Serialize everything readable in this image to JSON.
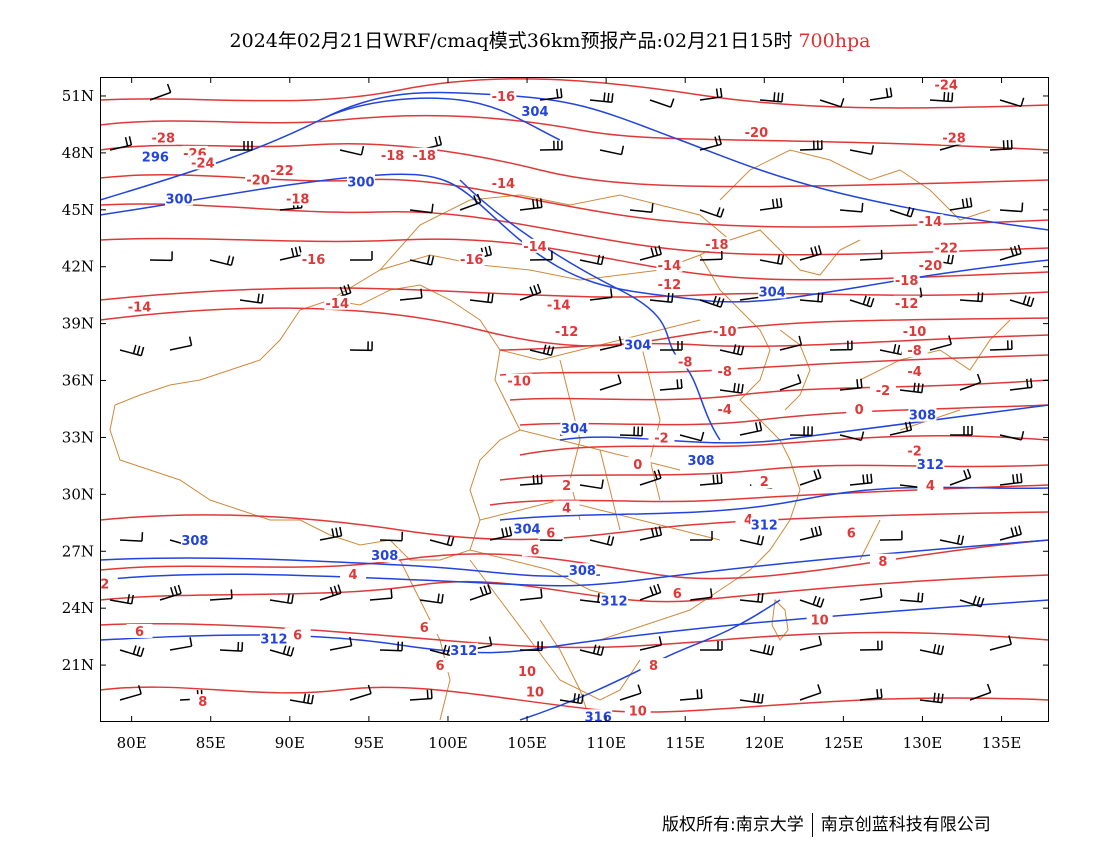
{
  "title": {
    "main": "2024年02月21日WRF/cmaq模式36km预报产品:02月21日15时",
    "level": "700hpa",
    "level_color": "#e03030"
  },
  "axes": {
    "lon_labels": [
      "80E",
      "85E",
      "90E",
      "95E",
      "100E",
      "105E",
      "110E",
      "115E",
      "120E",
      "125E",
      "130E",
      "135E"
    ],
    "lon_values": [
      80,
      85,
      90,
      95,
      100,
      105,
      110,
      115,
      120,
      125,
      130,
      135
    ],
    "lat_labels": [
      "51N",
      "48N",
      "45N",
      "42N",
      "39N",
      "36N",
      "33N",
      "30N",
      "27N",
      "24N",
      "21N"
    ],
    "lat_values": [
      51,
      48,
      45,
      42,
      39,
      36,
      33,
      30,
      27,
      24,
      21
    ],
    "lon_range": [
      78,
      138
    ],
    "lat_range": [
      18,
      52
    ]
  },
  "colors": {
    "temperature_contour": "#e03838",
    "height_contour": "#2244dd",
    "wind_barb": "#000000",
    "boundary": "#d08a3c"
  },
  "temperature_labels": [
    {
      "text": "-16",
      "lon": 103.5,
      "lat": 51.0
    },
    {
      "text": "-20",
      "lon": 119.5,
      "lat": 49.1
    },
    {
      "text": "-24",
      "lon": 131.5,
      "lat": 51.6
    },
    {
      "text": "-28",
      "lon": 132.0,
      "lat": 48.8
    },
    {
      "text": "-28",
      "lon": 82.0,
      "lat": 48.8
    },
    {
      "text": "-26",
      "lon": 84.0,
      "lat": 48.0
    },
    {
      "text": "-24",
      "lon": 84.5,
      "lat": 47.5
    },
    {
      "text": "-22",
      "lon": 89.5,
      "lat": 47.1
    },
    {
      "text": "-20",
      "lon": 88.0,
      "lat": 46.6
    },
    {
      "text": "-18",
      "lon": 90.5,
      "lat": 45.6
    },
    {
      "text": "-18",
      "lon": 96.5,
      "lat": 47.9
    },
    {
      "text": "-18",
      "lon": 98.5,
      "lat": 47.9
    },
    {
      "text": "-14",
      "lon": 103.5,
      "lat": 46.4
    },
    {
      "text": "-18",
      "lon": 117.0,
      "lat": 43.2
    },
    {
      "text": "-14",
      "lon": 130.5,
      "lat": 44.4
    },
    {
      "text": "-22",
      "lon": 131.5,
      "lat": 43.0
    },
    {
      "text": "-20",
      "lon": 130.5,
      "lat": 42.1
    },
    {
      "text": "-18",
      "lon": 129.0,
      "lat": 41.3
    },
    {
      "text": "-12",
      "lon": 129.0,
      "lat": 40.1
    },
    {
      "text": "-10",
      "lon": 129.5,
      "lat": 38.6
    },
    {
      "text": "-8",
      "lon": 129.5,
      "lat": 37.6
    },
    {
      "text": "-14",
      "lon": 105.5,
      "lat": 43.1
    },
    {
      "text": "-16",
      "lon": 91.5,
      "lat": 42.4
    },
    {
      "text": "-16",
      "lon": 101.5,
      "lat": 42.4
    },
    {
      "text": "-14",
      "lon": 93.0,
      "lat": 40.1
    },
    {
      "text": "-14",
      "lon": 107.0,
      "lat": 40.0
    },
    {
      "text": "-12",
      "lon": 107.5,
      "lat": 38.6
    },
    {
      "text": "-14",
      "lon": 80.5,
      "lat": 39.9
    },
    {
      "text": "-14",
      "lon": 114.0,
      "lat": 42.1
    },
    {
      "text": "-12",
      "lon": 114.0,
      "lat": 41.1
    },
    {
      "text": "-10",
      "lon": 117.5,
      "lat": 38.6
    },
    {
      "text": "-8",
      "lon": 115.0,
      "lat": 37.0
    },
    {
      "text": "-8",
      "lon": 117.5,
      "lat": 36.5
    },
    {
      "text": "-10",
      "lon": 104.5,
      "lat": 36.0
    },
    {
      "text": "-4",
      "lon": 129.5,
      "lat": 36.5
    },
    {
      "text": "-4",
      "lon": 117.5,
      "lat": 34.5
    },
    {
      "text": "-2",
      "lon": 127.5,
      "lat": 35.5
    },
    {
      "text": "0",
      "lon": 126.0,
      "lat": 34.5
    },
    {
      "text": "-2",
      "lon": 113.5,
      "lat": 33.0
    },
    {
      "text": "-2",
      "lon": 129.5,
      "lat": 32.3
    },
    {
      "text": "0",
      "lon": 112.0,
      "lat": 31.6
    },
    {
      "text": "2",
      "lon": 120.0,
      "lat": 30.7
    },
    {
      "text": "4",
      "lon": 130.5,
      "lat": 30.5
    },
    {
      "text": "2",
      "lon": 107.5,
      "lat": 30.5
    },
    {
      "text": "4",
      "lon": 107.5,
      "lat": 29.3
    },
    {
      "text": "4",
      "lon": 119.0,
      "lat": 28.7
    },
    {
      "text": "6",
      "lon": 125.5,
      "lat": 28.0
    },
    {
      "text": "6",
      "lon": 106.5,
      "lat": 28.0
    },
    {
      "text": "6",
      "lon": 105.5,
      "lat": 27.1
    },
    {
      "text": "8",
      "lon": 127.5,
      "lat": 26.5
    },
    {
      "text": "4",
      "lon": 94.0,
      "lat": 25.8
    },
    {
      "text": "6",
      "lon": 114.5,
      "lat": 24.8
    },
    {
      "text": "10",
      "lon": 123.5,
      "lat": 23.4
    },
    {
      "text": "6",
      "lon": 98.5,
      "lat": 23.0
    },
    {
      "text": "6",
      "lon": 80.5,
      "lat": 22.8
    },
    {
      "text": "6",
      "lon": 90.5,
      "lat": 22.6
    },
    {
      "text": "6",
      "lon": 99.5,
      "lat": 21.0
    },
    {
      "text": "10",
      "lon": 105.0,
      "lat": 20.7
    },
    {
      "text": "8",
      "lon": 113.0,
      "lat": 21.0
    },
    {
      "text": "10",
      "lon": 105.5,
      "lat": 19.6
    },
    {
      "text": "10",
      "lon": 112.0,
      "lat": 18.6
    },
    {
      "text": "8",
      "lon": 84.5,
      "lat": 19.1
    },
    {
      "text": "2",
      "lon": 78.3,
      "lat": 25.3
    }
  ],
  "height_labels": [
    {
      "text": "304",
      "lon": 105.5,
      "lat": 50.2
    },
    {
      "text": "296",
      "lon": 81.5,
      "lat": 47.8
    },
    {
      "text": "300",
      "lon": 83.0,
      "lat": 45.6
    },
    {
      "text": "300",
      "lon": 94.5,
      "lat": 46.5
    },
    {
      "text": "304",
      "lon": 120.5,
      "lat": 40.7
    },
    {
      "text": "304",
      "lon": 112.0,
      "lat": 37.9
    },
    {
      "text": "304",
      "lon": 108.0,
      "lat": 33.5
    },
    {
      "text": "308",
      "lon": 130.0,
      "lat": 34.2
    },
    {
      "text": "308",
      "lon": 116.0,
      "lat": 31.8
    },
    {
      "text": "312",
      "lon": 130.5,
      "lat": 31.6
    },
    {
      "text": "312",
      "lon": 120.0,
      "lat": 28.4
    },
    {
      "text": "304",
      "lon": 105.0,
      "lat": 28.2
    },
    {
      "text": "308",
      "lon": 84.0,
      "lat": 27.6
    },
    {
      "text": "308",
      "lon": 96.0,
      "lat": 26.8
    },
    {
      "text": "308",
      "lon": 108.5,
      "lat": 26.0
    },
    {
      "text": "312",
      "lon": 110.5,
      "lat": 24.4
    },
    {
      "text": "312",
      "lon": 89.0,
      "lat": 22.4
    },
    {
      "text": "312",
      "lon": 101.0,
      "lat": 21.8
    },
    {
      "text": "316",
      "lon": 109.5,
      "lat": 18.3
    }
  ],
  "footer": {
    "left": "版权所有:南京大学",
    "right": "南京创蓝科技有限公司"
  }
}
